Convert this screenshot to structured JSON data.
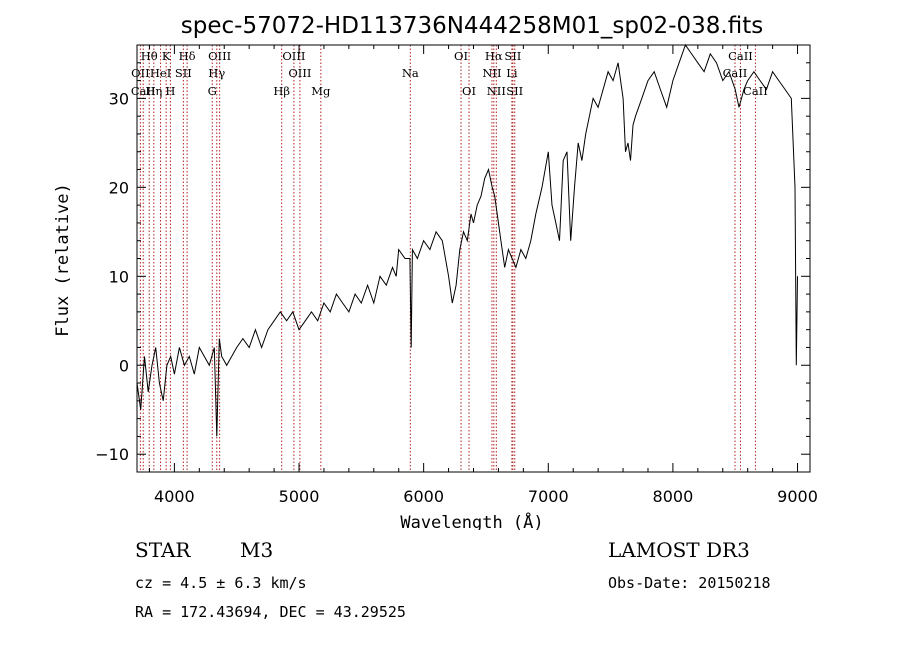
{
  "chart_data": {
    "type": "line",
    "title": "spec-57072-HD113736N444258M01_sp02-038.fits",
    "xlabel": "Wavelength (Å)",
    "ylabel": "Flux (relative)",
    "xlim": [
      3700,
      9100
    ],
    "ylim": [
      -12,
      36
    ],
    "xticks": [
      4000,
      5000,
      6000,
      7000,
      8000,
      9000
    ],
    "yticks": [
      -10,
      0,
      10,
      20,
      30
    ],
    "grid": false,
    "series": [
      {
        "name": "flux",
        "color": "#000000",
        "x": [
          3700,
          3730,
          3760,
          3790,
          3820,
          3850,
          3880,
          3910,
          3940,
          3970,
          4000,
          4040,
          4080,
          4120,
          4160,
          4200,
          4240,
          4280,
          4320,
          4340,
          4360,
          4380,
          4420,
          4460,
          4500,
          4550,
          4600,
          4650,
          4700,
          4750,
          4800,
          4850,
          4900,
          4950,
          5000,
          5050,
          5100,
          5150,
          5200,
          5250,
          5300,
          5350,
          5400,
          5450,
          5500,
          5550,
          5600,
          5650,
          5700,
          5750,
          5780,
          5800,
          5850,
          5890,
          5900,
          5910,
          5950,
          6000,
          6050,
          6100,
          6150,
          6200,
          6230,
          6260,
          6290,
          6320,
          6350,
          6380,
          6400,
          6430,
          6460,
          6490,
          6520,
          6550,
          6570,
          6590,
          6620,
          6650,
          6680,
          6710,
          6740,
          6780,
          6820,
          6860,
          6900,
          6950,
          7000,
          7030,
          7060,
          7090,
          7120,
          7150,
          7180,
          7210,
          7240,
          7270,
          7300,
          7330,
          7360,
          7400,
          7440,
          7480,
          7520,
          7560,
          7600,
          7620,
          7640,
          7660,
          7680,
          7700,
          7750,
          7800,
          7850,
          7900,
          7950,
          8000,
          8050,
          8100,
          8150,
          8200,
          8250,
          8300,
          8350,
          8400,
          8450,
          8500,
          8530,
          8550,
          8570,
          8600,
          8650,
          8700,
          8750,
          8800,
          8850,
          8900,
          8950,
          8980,
          8990,
          9000
        ],
        "values": [
          -2,
          -5,
          1,
          -3,
          0,
          2,
          -2,
          -4,
          0,
          1,
          -1,
          2,
          0,
          1,
          -1,
          2,
          1,
          0,
          2,
          -8,
          3,
          1,
          0,
          1,
          2,
          3,
          2,
          4,
          2,
          4,
          5,
          6,
          5,
          6,
          4,
          5,
          6,
          5,
          7,
          6,
          8,
          7,
          6,
          8,
          7,
          9,
          7,
          10,
          9,
          11,
          10,
          13,
          12,
          12,
          2,
          13,
          12,
          14,
          13,
          15,
          14,
          10,
          7,
          9,
          13,
          15,
          14,
          17,
          16,
          18,
          19,
          21,
          22,
          20,
          19,
          17,
          14,
          11,
          13,
          12,
          11,
          13,
          12,
          14,
          17,
          20,
          24,
          18,
          16,
          14,
          23,
          24,
          14,
          20,
          25,
          23,
          26,
          28,
          30,
          29,
          31,
          33,
          32,
          34,
          30,
          24,
          25,
          23,
          27,
          28,
          30,
          32,
          33,
          31,
          29,
          32,
          34,
          36,
          35,
          34,
          33,
          35,
          34,
          32,
          33,
          31,
          29,
          30,
          31,
          32,
          33,
          32,
          31,
          33,
          32,
          31,
          30,
          20,
          0,
          10
        ]
      }
    ],
    "spectral_lines": [
      {
        "label": "Hθ",
        "wavelength": 3798,
        "row": 1
      },
      {
        "label": "K",
        "wavelength": 3934,
        "row": 1
      },
      {
        "label": "Hδ",
        "wavelength": 4102,
        "row": 1
      },
      {
        "label": "OIII",
        "wavelength": 4363,
        "row": 1
      },
      {
        "label": "OIII",
        "wavelength": 4959,
        "row": 1
      },
      {
        "label": "OI",
        "wavelength": 6300,
        "row": 1
      },
      {
        "label": "Hα",
        "wavelength": 6563,
        "row": 1
      },
      {
        "label": "SII",
        "wavelength": 6716,
        "row": 1
      },
      {
        "label": "CaII",
        "wavelength": 8542,
        "row": 1
      },
      {
        "label": "OII",
        "wavelength": 3727,
        "row": 2
      },
      {
        "label": "HeI",
        "wavelength": 3889,
        "row": 2
      },
      {
        "label": "SII",
        "wavelength": 4072,
        "row": 2
      },
      {
        "label": "Hγ",
        "wavelength": 4340,
        "row": 2
      },
      {
        "label": "OIII",
        "wavelength": 5007,
        "row": 2
      },
      {
        "label": "Na",
        "wavelength": 5893,
        "row": 2
      },
      {
        "label": "NII",
        "wavelength": 6548,
        "row": 2
      },
      {
        "label": "Li",
        "wavelength": 6708,
        "row": 2
      },
      {
        "label": "CaII",
        "wavelength": 8498,
        "row": 2
      },
      {
        "label": "CaII",
        "wavelength": 3750,
        "row": 3
      },
      {
        "label": "Hη",
        "wavelength": 3835,
        "row": 3
      },
      {
        "label": "H",
        "wavelength": 3968,
        "row": 3
      },
      {
        "label": "G",
        "wavelength": 4304,
        "row": 3
      },
      {
        "label": "Hβ",
        "wavelength": 4861,
        "row": 3
      },
      {
        "label": "Mg",
        "wavelength": 5175,
        "row": 3
      },
      {
        "label": "OI",
        "wavelength": 6364,
        "row": 3
      },
      {
        "label": "NII",
        "wavelength": 6583,
        "row": 3
      },
      {
        "label": "SII",
        "wavelength": 6731,
        "row": 3
      },
      {
        "label": "CaII",
        "wavelength": 8662,
        "row": 3
      }
    ]
  },
  "info": {
    "class": "STAR",
    "subclass": "M3",
    "survey": "LAMOST DR3",
    "cz": "cz = 4.5 ± 6.3 km/s",
    "obs_date": "Obs-Date: 20150218",
    "coords": "RA = 172.43694, DEC =  43.29525"
  },
  "colors": {
    "spectrum": "#000000",
    "line_markers": "#b22222"
  }
}
